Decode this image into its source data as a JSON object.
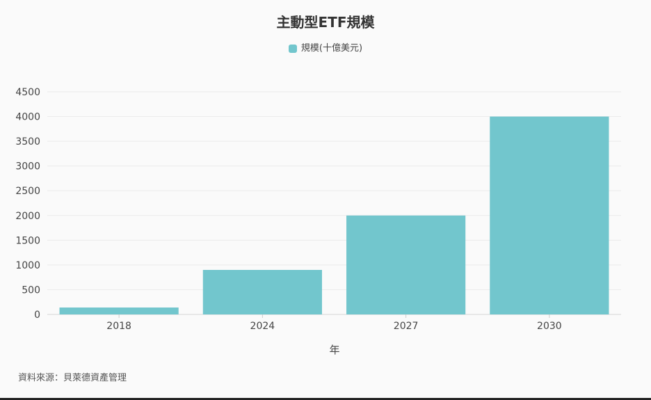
{
  "chart_data": {
    "type": "bar",
    "title": "主動型ETF規模",
    "categories": [
      "2018",
      "2024",
      "2027",
      "2030"
    ],
    "series": [
      {
        "name": "規模(十億美元)",
        "values": [
          140,
          900,
          2000,
          4000
        ],
        "color": "#72c6cd"
      }
    ],
    "xlabel": "年",
    "ylabel": "",
    "ylim": [
      0,
      4500
    ],
    "yticks": [
      0,
      500,
      1000,
      1500,
      2000,
      2500,
      3000,
      3500,
      4000,
      4500
    ],
    "grid": true,
    "legend_position": "top-center"
  },
  "source": "資料來源：貝萊德資產管理"
}
